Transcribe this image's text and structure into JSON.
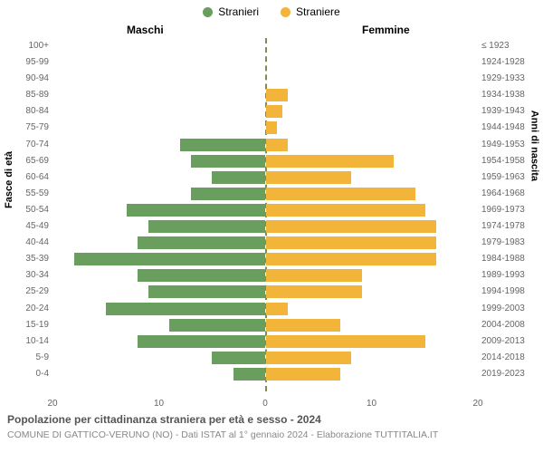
{
  "chart": {
    "type": "population-pyramid",
    "colors": {
      "male": "#6a9e5e",
      "female": "#f3b43a",
      "center_line": "#888855",
      "bg": "#ffffff",
      "text_muted": "#666666"
    },
    "legend": [
      {
        "label": "Stranieri",
        "color": "#6a9e5e"
      },
      {
        "label": "Straniere",
        "color": "#f3b43a"
      }
    ],
    "headers": {
      "male": "Maschi",
      "female": "Femmine"
    },
    "y_left_label": "Fasce di età",
    "y_right_label": "Anni di nascita",
    "x_axis": {
      "max": 20,
      "ticks": [
        20,
        10,
        0,
        10,
        20
      ]
    },
    "title": "Popolazione per cittadinanza straniera per età e sesso - 2024",
    "subtitle": "COMUNE DI GATTICO-VERUNO (NO) - Dati ISTAT al 1° gennaio 2024 - Elaborazione TUTTITALIA.IT",
    "rows": [
      {
        "age": "100+",
        "birth": "≤ 1923",
        "m": 0,
        "f": 0
      },
      {
        "age": "95-99",
        "birth": "1924-1928",
        "m": 0,
        "f": 0
      },
      {
        "age": "90-94",
        "birth": "1929-1933",
        "m": 0,
        "f": 0
      },
      {
        "age": "85-89",
        "birth": "1934-1938",
        "m": 0,
        "f": 2
      },
      {
        "age": "80-84",
        "birth": "1939-1943",
        "m": 0,
        "f": 1.5
      },
      {
        "age": "75-79",
        "birth": "1944-1948",
        "m": 0,
        "f": 1
      },
      {
        "age": "70-74",
        "birth": "1949-1953",
        "m": 8,
        "f": 2
      },
      {
        "age": "65-69",
        "birth": "1954-1958",
        "m": 7,
        "f": 12
      },
      {
        "age": "60-64",
        "birth": "1959-1963",
        "m": 5,
        "f": 8
      },
      {
        "age": "55-59",
        "birth": "1964-1968",
        "m": 7,
        "f": 14
      },
      {
        "age": "50-54",
        "birth": "1969-1973",
        "m": 13,
        "f": 15
      },
      {
        "age": "45-49",
        "birth": "1974-1978",
        "m": 11,
        "f": 16
      },
      {
        "age": "40-44",
        "birth": "1979-1983",
        "m": 12,
        "f": 16
      },
      {
        "age": "35-39",
        "birth": "1984-1988",
        "m": 18,
        "f": 16
      },
      {
        "age": "30-34",
        "birth": "1989-1993",
        "m": 12,
        "f": 9
      },
      {
        "age": "25-29",
        "birth": "1994-1998",
        "m": 11,
        "f": 9
      },
      {
        "age": "20-24",
        "birth": "1999-2003",
        "m": 15,
        "f": 2
      },
      {
        "age": "15-19",
        "birth": "2004-2008",
        "m": 9,
        "f": 7
      },
      {
        "age": "10-14",
        "birth": "2009-2013",
        "m": 12,
        "f": 15
      },
      {
        "age": "5-9",
        "birth": "2014-2018",
        "m": 5,
        "f": 8
      },
      {
        "age": "0-4",
        "birth": "2019-2023",
        "m": 3,
        "f": 7
      }
    ]
  }
}
